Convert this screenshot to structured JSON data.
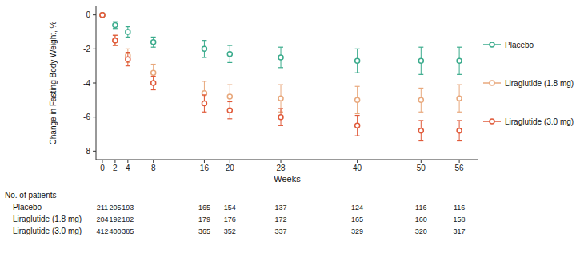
{
  "chart_data": {
    "type": "scatter",
    "xlabel": "Weeks",
    "ylabel": "Change in Fasting Body Weight, %",
    "x": [
      0,
      2,
      4,
      8,
      16,
      20,
      28,
      40,
      50,
      56
    ],
    "series": [
      {
        "name": "Placebo",
        "color": "#3aab8c",
        "values": [
          0,
          -0.6,
          -1.0,
          -1.6,
          -2.0,
          -2.3,
          -2.5,
          -2.7,
          -2.7,
          -2.7
        ],
        "err_lo": [
          0,
          0.2,
          0.3,
          0.3,
          0.5,
          0.5,
          0.6,
          0.7,
          0.8,
          0.8
        ],
        "err_hi": [
          0,
          0.2,
          0.3,
          0.3,
          0.5,
          0.5,
          0.6,
          0.7,
          0.8,
          0.8
        ]
      },
      {
        "name": "Liraglutide (1.8 mg)",
        "color": "#e8a87c",
        "values": [
          0,
          -1.5,
          -2.4,
          -3.4,
          -4.6,
          -4.8,
          -4.9,
          -5.0,
          -5.0,
          -4.9
        ],
        "err_lo": [
          0,
          0.3,
          0.4,
          0.5,
          0.7,
          0.7,
          0.8,
          0.8,
          0.7,
          0.8
        ],
        "err_hi": [
          0,
          0.3,
          0.4,
          0.5,
          0.7,
          0.7,
          0.8,
          0.8,
          0.7,
          0.8
        ]
      },
      {
        "name": "Liraglutide (3.0 mg)",
        "color": "#e05a3a",
        "values": [
          0,
          -1.5,
          -2.6,
          -4.0,
          -5.2,
          -5.6,
          -6.0,
          -6.5,
          -6.8,
          -6.8
        ],
        "err_lo": [
          0,
          0.3,
          0.4,
          0.4,
          0.5,
          0.5,
          0.5,
          0.6,
          0.6,
          0.6
        ],
        "err_hi": [
          0,
          0.3,
          0.4,
          0.4,
          0.5,
          0.5,
          0.5,
          0.6,
          0.6,
          0.6
        ]
      }
    ],
    "xlim": [
      -1,
      59
    ],
    "xticks": [
      0,
      2,
      4,
      8,
      16,
      20,
      28,
      40,
      50,
      56
    ],
    "ylim": [
      -8.5,
      0.5
    ],
    "yticks": [
      0,
      -2,
      -4,
      -6,
      -8
    ],
    "grid": false,
    "legend": "right",
    "table_header": "No. of patients",
    "table_labels": [
      "Placebo",
      "Liraglutide (1.8 mg)",
      "Liraglutide (3.0 mg)"
    ],
    "table_data": [
      [
        211,
        205,
        193,
        165,
        154,
        137,
        124,
        116,
        116
      ],
      [
        204,
        192,
        182,
        179,
        176,
        172,
        165,
        160,
        158
      ],
      [
        412,
        400,
        385,
        365,
        352,
        337,
        329,
        320,
        317
      ]
    ],
    "table_weeks": [
      0,
      2,
      4,
      16,
      20,
      28,
      40,
      50,
      56
    ]
  }
}
